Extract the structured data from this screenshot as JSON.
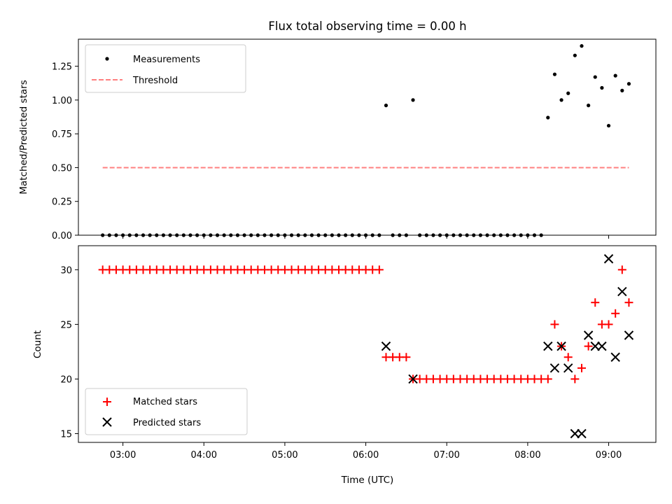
{
  "chart_data": [
    {
      "type": "scatter",
      "title": "Flux total observing time = 0.00 h",
      "xlabel": "",
      "ylabel": "Matched/Predicted stars",
      "ylim": [
        0,
        1.45
      ],
      "yticks": [
        0.0,
        0.25,
        0.5,
        0.75,
        1.0,
        1.25
      ],
      "ytick_labels": [
        "0.00",
        "0.25",
        "0.50",
        "0.75",
        "1.00",
        "1.25"
      ],
      "xlim": [
        "02:27",
        "09:35"
      ],
      "xtick_labels_shown": false,
      "legend_position": "upper-left",
      "series": [
        {
          "name": "Measurements",
          "marker": "dot",
          "color": "#000000",
          "x": [
            "02:45",
            "02:50",
            "02:55",
            "03:00",
            "03:05",
            "03:10",
            "03:15",
            "03:20",
            "03:25",
            "03:30",
            "03:35",
            "03:40",
            "03:45",
            "03:50",
            "03:55",
            "04:00",
            "04:05",
            "04:10",
            "04:15",
            "04:20",
            "04:25",
            "04:30",
            "04:35",
            "04:40",
            "04:45",
            "04:50",
            "04:55",
            "05:00",
            "05:05",
            "05:10",
            "05:15",
            "05:20",
            "05:25",
            "05:30",
            "05:35",
            "05:40",
            "05:45",
            "05:50",
            "05:55",
            "06:00",
            "06:05",
            "06:10",
            "06:15",
            "06:20",
            "06:25",
            "06:30",
            "06:35",
            "06:40",
            "06:45",
            "06:50",
            "06:55",
            "07:00",
            "07:05",
            "07:10",
            "07:15",
            "07:20",
            "07:25",
            "07:30",
            "07:35",
            "07:40",
            "07:45",
            "07:50",
            "07:55",
            "08:00",
            "08:05",
            "08:10",
            "08:15",
            "08:20",
            "08:25",
            "08:30",
            "08:35",
            "08:40",
            "08:45",
            "08:50",
            "08:55",
            "09:00",
            "09:05",
            "09:10",
            "09:15"
          ],
          "y": [
            0,
            0,
            0,
            0,
            0,
            0,
            0,
            0,
            0,
            0,
            0,
            0,
            0,
            0,
            0,
            0,
            0,
            0,
            0,
            0,
            0,
            0,
            0,
            0,
            0,
            0,
            0,
            0,
            0,
            0,
            0,
            0,
            0,
            0,
            0,
            0,
            0,
            0,
            0,
            0,
            0,
            0,
            0.96,
            0,
            0,
            0,
            1.0,
            0,
            0,
            0,
            0,
            0,
            0,
            0,
            0,
            0,
            0,
            0,
            0,
            0,
            0,
            0,
            0,
            0,
            0,
            0,
            0.87,
            1.19,
            1.0,
            1.05,
            1.33,
            1.4,
            0.96,
            1.17,
            1.09,
            0.81,
            1.18,
            1.07,
            1.12
          ]
        },
        {
          "name": "Threshold",
          "line": "dashed",
          "color": "#ff7f7f",
          "x": [
            "02:45",
            "09:15"
          ],
          "y": [
            0.5,
            0.5
          ]
        }
      ]
    },
    {
      "type": "scatter",
      "title": "",
      "xlabel": "Time (UTC)",
      "ylabel": "Count",
      "ylim": [
        14.2,
        32.2
      ],
      "yticks": [
        15,
        20,
        25,
        30
      ],
      "ytick_labels": [
        "15",
        "20",
        "25",
        "30"
      ],
      "xlim": [
        "02:27",
        "09:35"
      ],
      "xticks": [
        "03:00",
        "04:00",
        "05:00",
        "06:00",
        "07:00",
        "08:00",
        "09:00"
      ],
      "xtick_labels": [
        "03:00",
        "04:00",
        "05:00",
        "06:00",
        "07:00",
        "08:00",
        "09:00"
      ],
      "legend_position": "lower-left",
      "series": [
        {
          "name": "Matched stars",
          "marker": "plus",
          "color": "#ff0000",
          "x": [
            "02:45",
            "02:50",
            "02:55",
            "03:00",
            "03:05",
            "03:10",
            "03:15",
            "03:20",
            "03:25",
            "03:30",
            "03:35",
            "03:40",
            "03:45",
            "03:50",
            "03:55",
            "04:00",
            "04:05",
            "04:10",
            "04:15",
            "04:20",
            "04:25",
            "04:30",
            "04:35",
            "04:40",
            "04:45",
            "04:50",
            "04:55",
            "05:00",
            "05:05",
            "05:10",
            "05:15",
            "05:20",
            "05:25",
            "05:30",
            "05:35",
            "05:40",
            "05:45",
            "05:50",
            "05:55",
            "06:00",
            "06:05",
            "06:10",
            "06:15",
            "06:20",
            "06:25",
            "06:30",
            "06:35",
            "06:40",
            "06:45",
            "06:50",
            "06:55",
            "07:00",
            "07:05",
            "07:10",
            "07:15",
            "07:20",
            "07:25",
            "07:30",
            "07:35",
            "07:40",
            "07:45",
            "07:50",
            "07:55",
            "08:00",
            "08:05",
            "08:10",
            "08:15",
            "08:20",
            "08:25",
            "08:30",
            "08:35",
            "08:40",
            "08:45",
            "08:50",
            "08:55",
            "09:00",
            "09:05",
            "09:10",
            "09:15"
          ],
          "y": [
            30,
            30,
            30,
            30,
            30,
            30,
            30,
            30,
            30,
            30,
            30,
            30,
            30,
            30,
            30,
            30,
            30,
            30,
            30,
            30,
            30,
            30,
            30,
            30,
            30,
            30,
            30,
            30,
            30,
            30,
            30,
            30,
            30,
            30,
            30,
            30,
            30,
            30,
            30,
            30,
            30,
            30,
            22,
            22,
            22,
            22,
            20,
            20,
            20,
            20,
            20,
            20,
            20,
            20,
            20,
            20,
            20,
            20,
            20,
            20,
            20,
            20,
            20,
            20,
            20,
            20,
            20,
            25,
            23,
            22,
            20,
            21,
            23,
            27,
            25,
            25,
            26,
            30,
            27
          ]
        },
        {
          "name": "Predicted stars",
          "marker": "x",
          "color": "#000000",
          "x": [
            "06:15",
            "06:35",
            "08:15",
            "08:20",
            "08:25",
            "08:30",
            "08:35",
            "08:40",
            "08:45",
            "08:50",
            "08:55",
            "09:00",
            "09:05",
            "09:10",
            "09:15"
          ],
          "y": [
            23,
            20,
            23,
            21,
            23,
            21,
            15,
            15,
            24,
            23,
            23,
            31,
            22,
            28,
            24
          ]
        }
      ]
    }
  ]
}
